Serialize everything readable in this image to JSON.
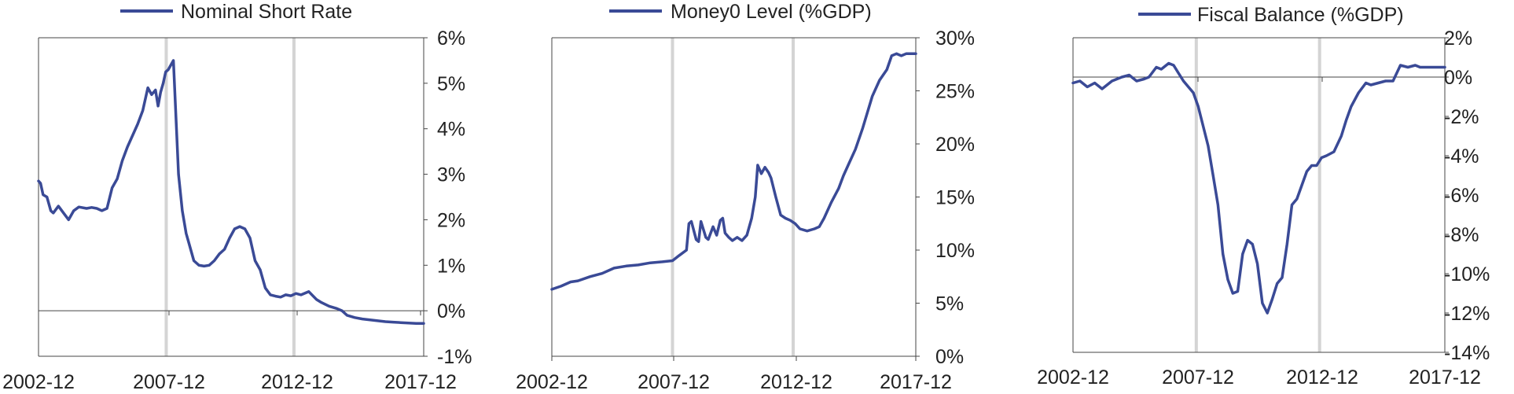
{
  "chart_data": [
    {
      "type": "line",
      "legend": "Nominal Short Rate",
      "x_ticks": [
        "2002-12",
        "2007-12",
        "2012-12",
        "2017-12"
      ],
      "y_ticks": [
        "6%",
        "5%",
        "4%",
        "3%",
        "2%",
        "1%",
        "0%",
        "-1%"
      ],
      "ylim": [
        -1,
        6
      ],
      "xlim": [
        2002.92,
        2018.0
      ],
      "vlines": [
        2007.92,
        2012.92
      ],
      "zero_line": 0,
      "color": "#3a4a96",
      "series": [
        {
          "x": [
            2002.92,
            2003.0,
            2003.1,
            2003.25,
            2003.4,
            2003.5,
            2003.7,
            2003.9,
            2004.1,
            2004.3,
            2004.5,
            2004.8,
            2005.0,
            2005.2,
            2005.4,
            2005.6,
            2005.8,
            2006.0,
            2006.2,
            2006.4,
            2006.6,
            2006.8,
            2007.0,
            2007.2,
            2007.35,
            2007.5,
            2007.6,
            2007.7,
            2007.8,
            2007.9,
            2008.0,
            2008.2,
            2008.4,
            2008.55,
            2008.7,
            2008.8,
            2009.0,
            2009.2,
            2009.4,
            2009.6,
            2009.8,
            2010.0,
            2010.2,
            2010.4,
            2010.6,
            2010.8,
            2011.0,
            2011.2,
            2011.4,
            2011.6,
            2011.8,
            2012.0,
            2012.2,
            2012.4,
            2012.6,
            2012.8,
            2013.0,
            2013.2,
            2013.5,
            2013.8,
            2014.0,
            2014.3,
            2014.6,
            2014.8,
            2015.0,
            2015.3,
            2015.6,
            2015.9,
            2016.2,
            2016.5,
            2016.8,
            2017.1,
            2017.4,
            2017.7,
            2018.0
          ],
          "y": [
            2.85,
            2.8,
            2.55,
            2.5,
            2.2,
            2.15,
            2.3,
            2.15,
            2.0,
            2.2,
            2.28,
            2.25,
            2.27,
            2.25,
            2.2,
            2.25,
            2.7,
            2.9,
            3.3,
            3.6,
            3.85,
            4.1,
            4.4,
            4.9,
            4.75,
            4.85,
            4.5,
            4.8,
            5.0,
            5.25,
            5.3,
            5.5,
            3.0,
            2.2,
            1.7,
            1.5,
            1.1,
            1.0,
            0.98,
            1.0,
            1.1,
            1.25,
            1.35,
            1.6,
            1.8,
            1.85,
            1.8,
            1.6,
            1.1,
            0.9,
            0.5,
            0.35,
            0.32,
            0.3,
            0.35,
            0.33,
            0.38,
            0.35,
            0.42,
            0.25,
            0.18,
            0.1,
            0.05,
            0.0,
            -0.1,
            -0.15,
            -0.18,
            -0.2,
            -0.22,
            -0.24,
            -0.25,
            -0.26,
            -0.27,
            -0.28,
            -0.28
          ]
        }
      ]
    },
    {
      "type": "line",
      "legend": "Money0 Level (%GDP)",
      "x_ticks": [
        "2002-12",
        "2007-12",
        "2012-12",
        "2017-12"
      ],
      "y_ticks": [
        "30%",
        "25%",
        "20%",
        "15%",
        "10%",
        "5%",
        "0%"
      ],
      "ylim": [
        0,
        30
      ],
      "xlim": [
        2002.92,
        2018.0
      ],
      "vlines": [
        2007.92,
        2012.92
      ],
      "color": "#3a4a96",
      "series": [
        {
          "x": [
            2002.92,
            2003.3,
            2003.7,
            2004.0,
            2004.5,
            2005.0,
            2005.5,
            2006.0,
            2006.5,
            2007.0,
            2007.5,
            2007.92,
            2008.2,
            2008.5,
            2008.6,
            2008.7,
            2008.9,
            2009.0,
            2009.1,
            2009.3,
            2009.4,
            2009.6,
            2009.75,
            2009.9,
            2010.0,
            2010.1,
            2010.25,
            2010.4,
            2010.6,
            2010.8,
            2011.0,
            2011.2,
            2011.35,
            2011.45,
            2011.6,
            2011.75,
            2011.9,
            2012.0,
            2012.2,
            2012.4,
            2012.6,
            2012.8,
            2013.0,
            2013.2,
            2013.5,
            2013.8,
            2014.0,
            2014.2,
            2014.5,
            2014.8,
            2015.0,
            2015.2,
            2015.5,
            2015.8,
            2016.0,
            2016.2,
            2016.5,
            2016.8,
            2017.0,
            2017.2,
            2017.4,
            2017.6,
            2017.8,
            2018.0
          ],
          "y": [
            6.3,
            6.6,
            7.0,
            7.1,
            7.5,
            7.8,
            8.3,
            8.5,
            8.6,
            8.8,
            8.9,
            9.0,
            9.5,
            10.0,
            12.5,
            12.7,
            11.0,
            10.8,
            12.7,
            11.2,
            11.0,
            12.2,
            11.4,
            12.8,
            13.0,
            11.6,
            11.2,
            10.9,
            11.2,
            10.9,
            11.4,
            13.0,
            15.0,
            18.0,
            17.2,
            17.8,
            17.3,
            16.8,
            15.0,
            13.3,
            13.0,
            12.8,
            12.5,
            12.0,
            11.8,
            12.0,
            12.2,
            13.0,
            14.5,
            15.8,
            17.0,
            18.0,
            19.5,
            21.5,
            23.0,
            24.5,
            26.0,
            27.0,
            28.3,
            28.5,
            28.3,
            28.5,
            28.5,
            28.5
          ]
        }
      ]
    },
    {
      "type": "line",
      "legend": "Fiscal Balance (%GDP)",
      "x_ticks": [
        "2002-12",
        "2007-12",
        "2012-12",
        "2017-12"
      ],
      "y_ticks": [
        "2%",
        "0%",
        "-2%",
        "-4%",
        "-6%",
        "-8%",
        "-10%",
        "-12%",
        "-14%"
      ],
      "ylim": [
        -14,
        2
      ],
      "xlim": [
        2002.92,
        2018.0
      ],
      "vlines": [
        2007.92,
        2012.92
      ],
      "zero_line": 0,
      "color": "#3a4a96",
      "series": [
        {
          "x": [
            2002.92,
            2003.2,
            2003.5,
            2003.8,
            2004.1,
            2004.5,
            2004.9,
            2005.2,
            2005.5,
            2005.8,
            2006.0,
            2006.3,
            2006.5,
            2006.8,
            2007.0,
            2007.2,
            2007.4,
            2007.6,
            2007.8,
            2008.0,
            2008.2,
            2008.4,
            2008.6,
            2008.8,
            2009.0,
            2009.2,
            2009.4,
            2009.6,
            2009.8,
            2010.0,
            2010.2,
            2010.4,
            2010.6,
            2010.8,
            2011.0,
            2011.2,
            2011.4,
            2011.6,
            2011.8,
            2012.0,
            2012.2,
            2012.4,
            2012.6,
            2012.8,
            2013.0,
            2013.2,
            2013.5,
            2013.8,
            2014.0,
            2014.2,
            2014.5,
            2014.8,
            2015.0,
            2015.3,
            2015.6,
            2015.9,
            2016.2,
            2016.5,
            2016.8,
            2017.0,
            2017.2,
            2017.4,
            2017.7,
            2018.0
          ],
          "y": [
            -0.3,
            -0.2,
            -0.5,
            -0.3,
            -0.6,
            -0.2,
            0.0,
            0.1,
            -0.2,
            -0.1,
            0.0,
            0.5,
            0.4,
            0.7,
            0.6,
            0.2,
            -0.2,
            -0.5,
            -0.8,
            -1.5,
            -2.5,
            -3.5,
            -5.0,
            -6.5,
            -9.0,
            -10.3,
            -11.0,
            -10.9,
            -9.0,
            -8.3,
            -8.5,
            -9.5,
            -11.5,
            -12.0,
            -11.3,
            -10.5,
            -10.2,
            -8.5,
            -6.5,
            -6.2,
            -5.5,
            -4.8,
            -4.5,
            -4.5,
            -4.1,
            -4.0,
            -3.8,
            -3.0,
            -2.2,
            -1.5,
            -0.8,
            -0.3,
            -0.4,
            -0.3,
            -0.2,
            -0.2,
            0.6,
            0.5,
            0.6,
            0.5,
            0.5,
            0.5,
            0.5,
            0.5
          ]
        }
      ]
    }
  ]
}
